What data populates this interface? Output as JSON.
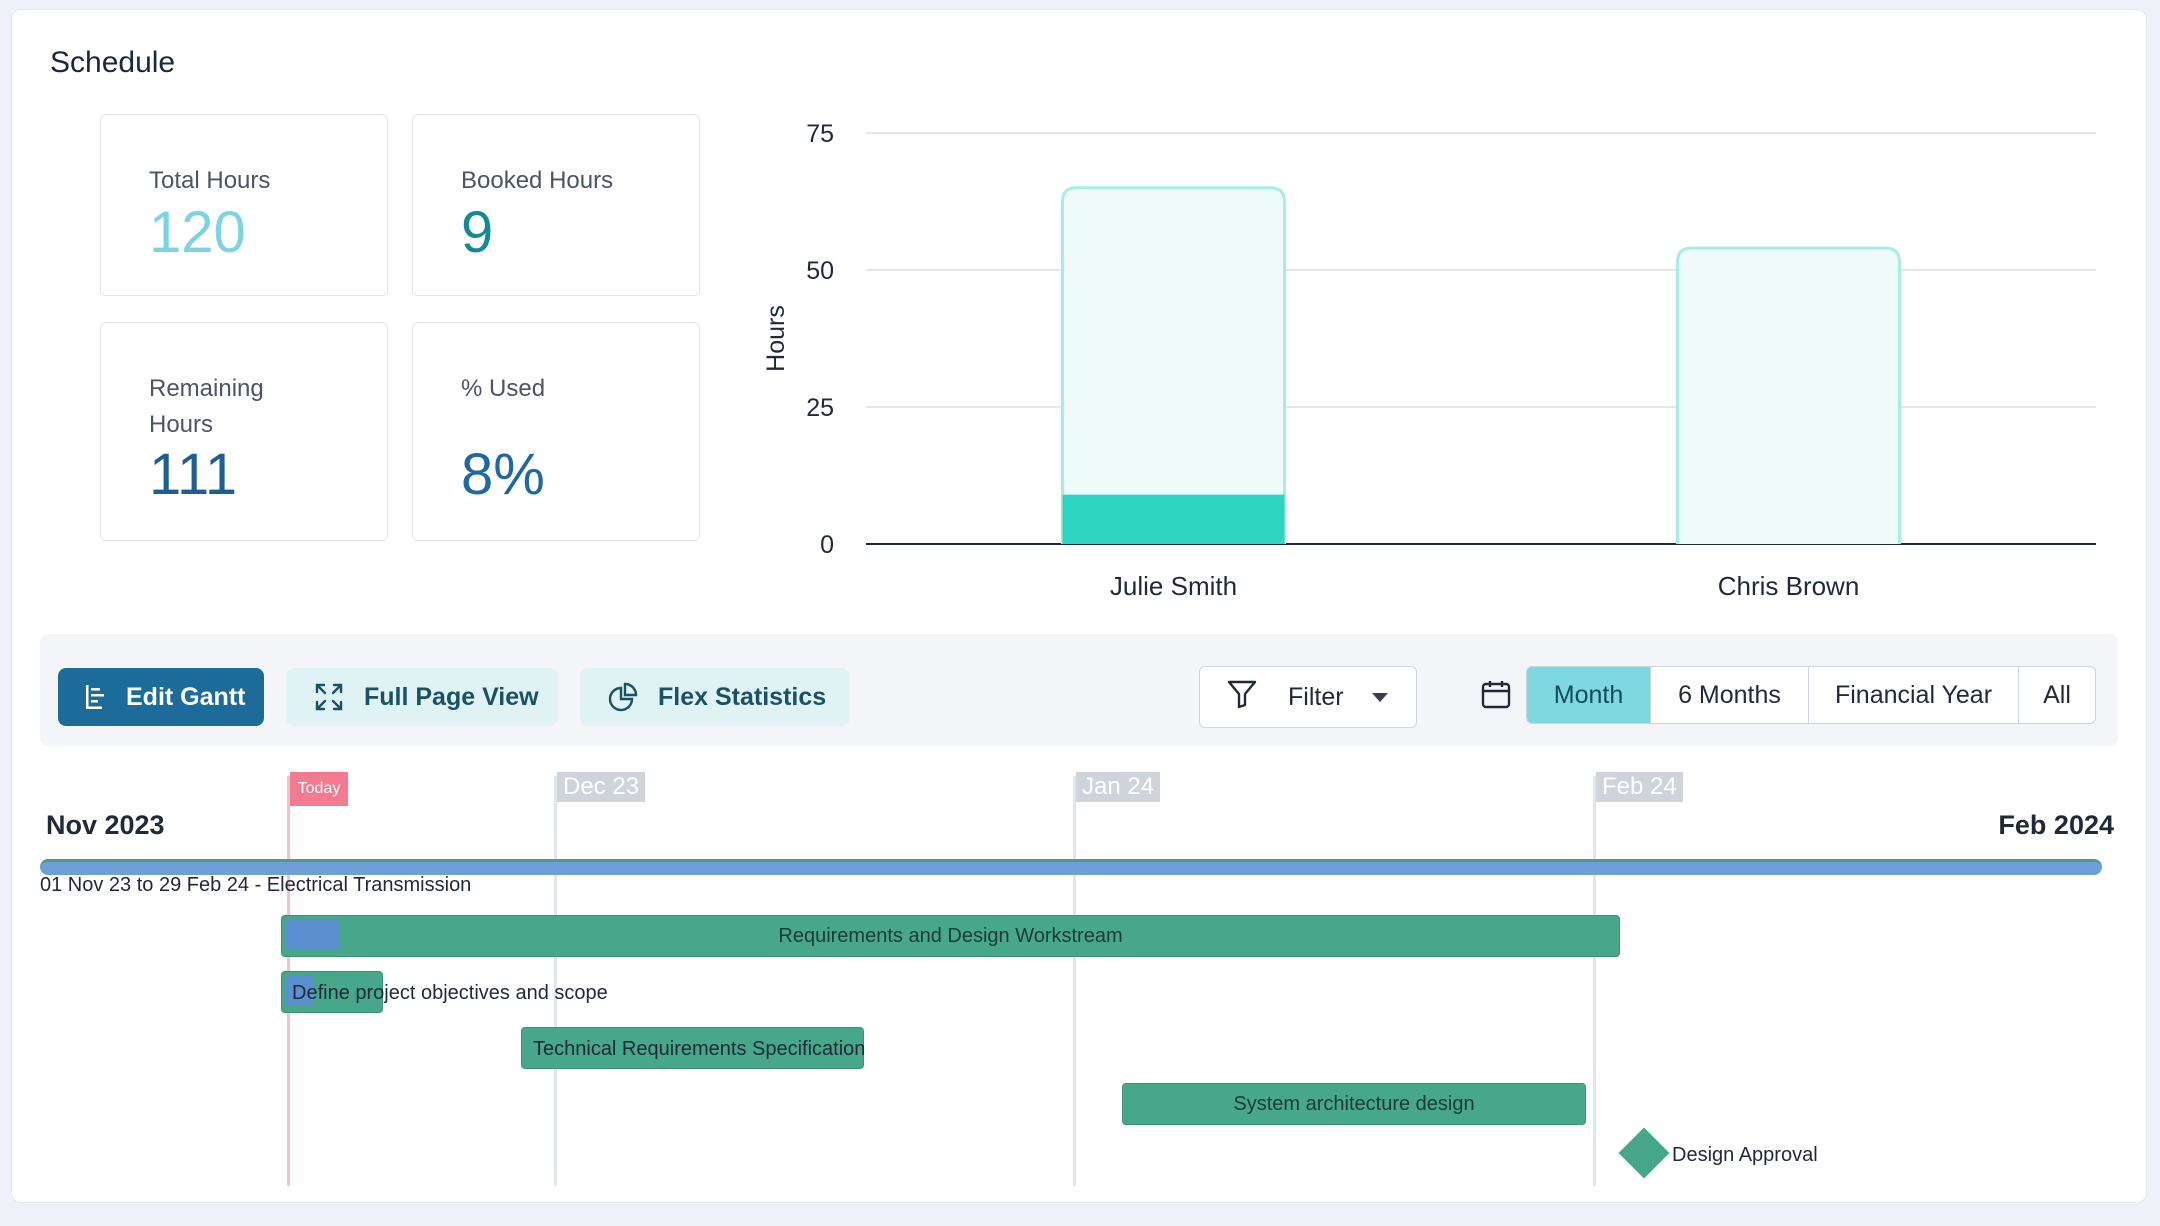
{
  "header": {
    "title": "Schedule"
  },
  "stats": {
    "total": {
      "label": "Total Hours",
      "value": "120",
      "color": "#7dd3e0"
    },
    "booked": {
      "label": "Booked Hours",
      "value": "9",
      "color": "#148a99"
    },
    "remaining": {
      "label": "Remaining Hours",
      "value": "111",
      "color": "#1d5e95"
    },
    "used": {
      "label": "% Used",
      "value": "8%",
      "color": "#1f68a3"
    }
  },
  "chart_data": {
    "type": "bar",
    "categories": [
      "Julie Smith",
      "Chris Brown"
    ],
    "series": [
      {
        "name": "Booked",
        "values": [
          9,
          0
        ],
        "color": "#2dd4bf"
      },
      {
        "name": "Total",
        "values": [
          65,
          54
        ],
        "color": "#effbf9"
      }
    ],
    "ylabel": "Hours",
    "yticks": [
      "0",
      "25",
      "50",
      "75"
    ],
    "ylim": [
      0,
      75
    ],
    "grid": true
  },
  "toolbar": {
    "edit_gantt": "Edit Gantt",
    "full_page_view": "Full Page View",
    "flex_statistics": "Flex Statistics",
    "filter": "Filter",
    "ranges": [
      "Month",
      "6 Months",
      "Financial Year",
      "All"
    ],
    "active_range": "Month"
  },
  "gantt": {
    "today_label": "Today",
    "months": [
      "Dec 23",
      "Jan 24",
      "Feb 24"
    ],
    "start_label": "Nov 2023",
    "end_label": "Feb 2024",
    "summary": "01 Nov 23 to 29 Feb 24 - Electrical Transmission",
    "tasks": [
      "Requirements and Design Workstream",
      "Define project objectives and scope",
      "Technical Requirements Specification",
      "System architecture design"
    ],
    "milestone": "Design Approval"
  }
}
